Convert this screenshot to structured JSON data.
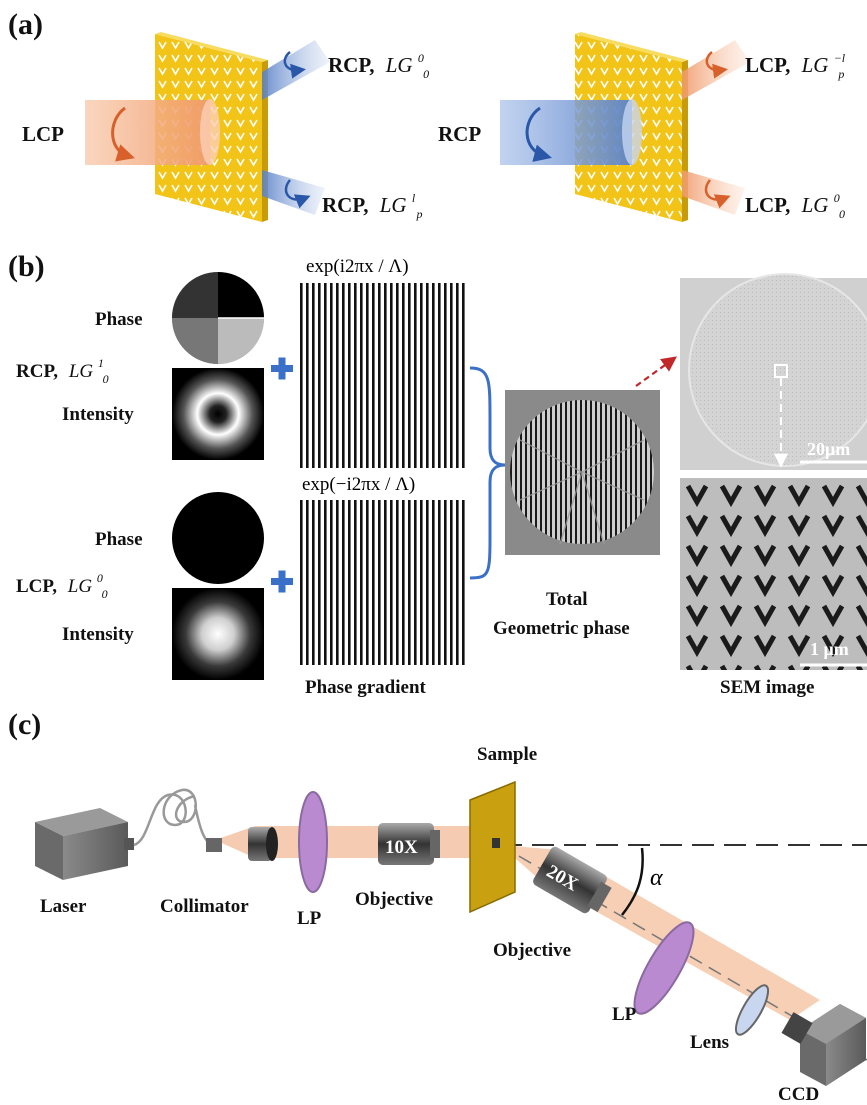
{
  "panels": {
    "a": {
      "label": "(a)",
      "left": {
        "input": "LCP",
        "out_top_pol": "RCP,",
        "out_top_mode": "LG",
        "out_top_sup": "0",
        "out_top_sub": "0",
        "out_bot_pol": "RCP,",
        "out_bot_mode": "LG",
        "out_bot_sup": "l",
        "out_bot_sub": "p"
      },
      "right": {
        "input": "RCP",
        "out_top_pol": "LCP,",
        "out_top_mode": "LG",
        "out_top_sup": "−l",
        "out_top_sub": "p",
        "out_bot_pol": "LCP,",
        "out_bot_mode": "LG",
        "out_bot_sup": "0",
        "out_bot_sub": "0"
      }
    },
    "b": {
      "label": "(b)",
      "phase": "Phase",
      "intensity": "Intensity",
      "rcp_label": "RCP,",
      "rcp_mode": "LG",
      "rcp_sup": "1",
      "rcp_sub": "0",
      "lcp_label": "LCP,",
      "lcp_mode": "LG",
      "lcp_sup": "0",
      "lcp_sub": "0",
      "exp_top": "exp(i2πx / Λ)",
      "exp_bottom": "exp(−i2πx / Λ)",
      "phase_gradient": "Phase gradient",
      "total_line1": "Total",
      "total_line2": "Geometric phase",
      "scale_top": "20μm",
      "scale_bottom": "1 μm",
      "sem": "SEM image"
    },
    "c": {
      "label": "(c)",
      "laser": "Laser",
      "collimator": "Collimator",
      "lp1": "LP",
      "objective1": "Objective",
      "mag1": "10X",
      "sample": "Sample",
      "objective2": "Objective",
      "mag2": "20X",
      "angle": "α",
      "lp2": "LP",
      "lens": "Lens",
      "ccd": "CCD"
    }
  },
  "colors": {
    "metasurface": "#f2c418",
    "lcp_beam": "#f0a070",
    "rcp_beam": "#6f93d0",
    "arrow_orange": "#d8602a",
    "arrow_blue": "#2a57a8",
    "plus": "#3a70c8",
    "polarizer": "#b98ad0",
    "beam_c": "#f4c7a8"
  }
}
